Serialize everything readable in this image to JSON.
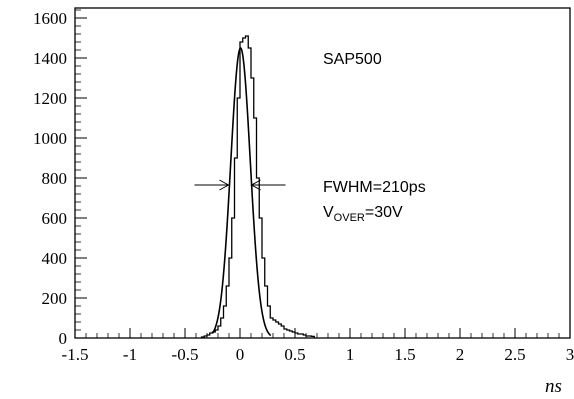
{
  "chart_data": {
    "type": "line",
    "title": "",
    "xlabel": "ns",
    "ylabel": "",
    "xlim": [
      -1.5,
      3.0
    ],
    "ylim": [
      0,
      1650
    ],
    "grid": false,
    "x_ticks": [
      -1.5,
      -1,
      -0.5,
      0,
      0.5,
      1,
      1.5,
      2,
      2.5,
      3
    ],
    "x_tick_labels": [
      "-1.5",
      "-1",
      "-0.5",
      "0",
      "0.5",
      "1",
      "1.5",
      "2",
      "2.5",
      "3"
    ],
    "y_ticks": [
      0,
      200,
      400,
      600,
      800,
      1000,
      1200,
      1400,
      1600
    ],
    "y_tick_labels": [
      "0",
      "200",
      "400",
      "600",
      "800",
      "1000",
      "1200",
      "1400",
      "1600"
    ],
    "series": [
      {
        "kind": "histogram",
        "bin_width": 0.025,
        "bin_edges_start": -0.35,
        "values": [
          5,
          10,
          15,
          25,
          30,
          40,
          60,
          100,
          160,
          260,
          400,
          600,
          900,
          1200,
          1480,
          1500,
          1510,
          1450,
          1300,
          1100,
          800,
          600,
          400,
          260,
          160,
          100,
          90,
          80,
          70,
          60,
          45,
          40,
          35,
          30,
          25,
          20,
          20,
          15,
          10,
          10,
          8
        ]
      },
      {
        "kind": "gaussian-fit",
        "amplitude": 1450,
        "mean": 0.005,
        "sigma": 0.089,
        "x_range": [
          -0.25,
          0.28
        ]
      }
    ],
    "annotations": {
      "label": "SAP500",
      "fwhm": "FWHM=210ps",
      "vover_main": "V",
      "vover_sub": "OVER",
      "vover_value": "=30V",
      "fwhm_arrow_y": 765,
      "fwhm_arrow_x": [
        -0.105,
        0.105
      ]
    }
  }
}
